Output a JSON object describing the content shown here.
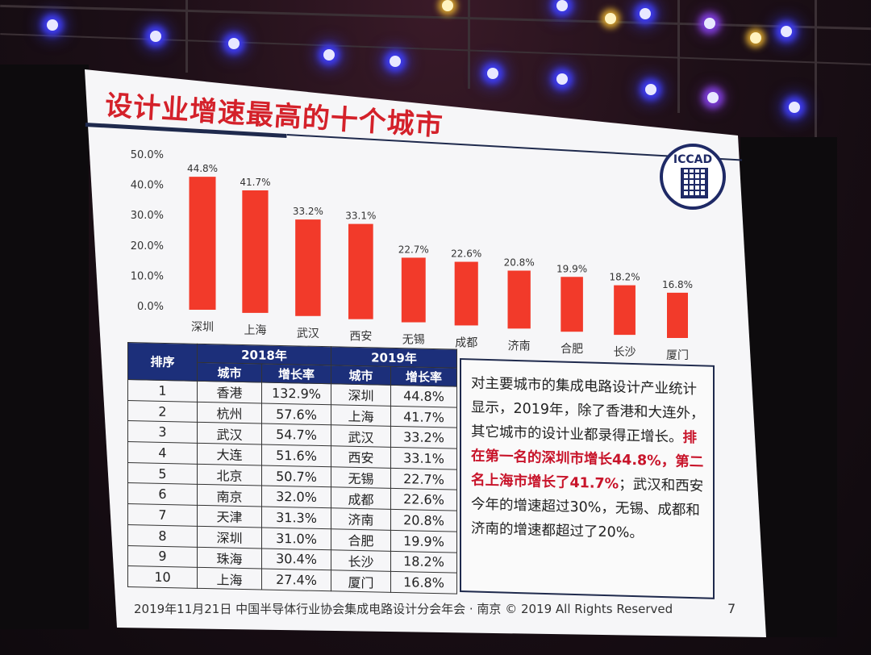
{
  "slide": {
    "title": "设计业增速最高的十个城市",
    "logo_text": "ICCAD",
    "footer": "2019年11月21日  中国半导体行业协会集成电路设计分会年会 · 南京 © 2019 All Rights Reserved",
    "page_number": "7"
  },
  "chart_data": {
    "type": "bar",
    "title": "",
    "categories": [
      "深圳",
      "上海",
      "武汉",
      "西安",
      "无锡",
      "成都",
      "济南",
      "合肥",
      "长沙",
      "厦门"
    ],
    "values": [
      44.8,
      41.7,
      33.2,
      33.1,
      22.7,
      22.6,
      20.8,
      19.9,
      18.2,
      16.8
    ],
    "data_labels": [
      "44.8%",
      "41.7%",
      "33.2%",
      "33.1%",
      "22.7%",
      "22.6%",
      "20.8%",
      "19.9%",
      "18.2%",
      "16.8%"
    ],
    "y_ticks": [
      "50.0%",
      "40.0%",
      "30.0%",
      "20.0%",
      "10.0%",
      "0.0%"
    ],
    "ylim": [
      0,
      50
    ],
    "bar_color": "#f23a2a",
    "grid": false,
    "legend": "none"
  },
  "table": {
    "rank_header": "排序",
    "year_2018": "2018年",
    "year_2019": "2019年",
    "city_header": "城市",
    "growth_header": "增长率",
    "rows": [
      {
        "rank": "1",
        "city_2018": "香港",
        "rate_2018": "132.9%",
        "city_2019": "深圳",
        "rate_2019": "44.8%"
      },
      {
        "rank": "2",
        "city_2018": "杭州",
        "rate_2018": "57.6%",
        "city_2019": "上海",
        "rate_2019": "41.7%"
      },
      {
        "rank": "3",
        "city_2018": "武汉",
        "rate_2018": "54.7%",
        "city_2019": "武汉",
        "rate_2019": "33.2%"
      },
      {
        "rank": "4",
        "city_2018": "大连",
        "rate_2018": "51.6%",
        "city_2019": "西安",
        "rate_2019": "33.1%"
      },
      {
        "rank": "5",
        "city_2018": "北京",
        "rate_2018": "50.7%",
        "city_2019": "无锡",
        "rate_2019": "22.7%"
      },
      {
        "rank": "6",
        "city_2018": "南京",
        "rate_2018": "32.0%",
        "city_2019": "成都",
        "rate_2019": "22.6%"
      },
      {
        "rank": "7",
        "city_2018": "天津",
        "rate_2018": "31.3%",
        "city_2019": "济南",
        "rate_2019": "20.8%"
      },
      {
        "rank": "8",
        "city_2018": "深圳",
        "rate_2018": "31.0%",
        "city_2019": "合肥",
        "rate_2019": "19.9%"
      },
      {
        "rank": "9",
        "city_2018": "珠海",
        "rate_2018": "30.4%",
        "city_2019": "长沙",
        "rate_2019": "18.2%"
      },
      {
        "rank": "10",
        "city_2018": "上海",
        "rate_2018": "27.4%",
        "city_2019": "厦门",
        "rate_2019": "16.8%"
      }
    ]
  },
  "summary": {
    "part1": "对主要城市的集成电路设计产业统计显示，2019年，除了香港和大连外，其它城市的设计业都录得正增长。",
    "highlight": "排在第一名的深圳市增长44.8%，第二名上海市增长了41.7%",
    "part2": "；武汉和西安今年的增速超过30%，无锡、成都和济南的增速都超过了20%。"
  },
  "colors": {
    "accent_red": "#d4212a",
    "header_blue": "#1c2f7a"
  }
}
